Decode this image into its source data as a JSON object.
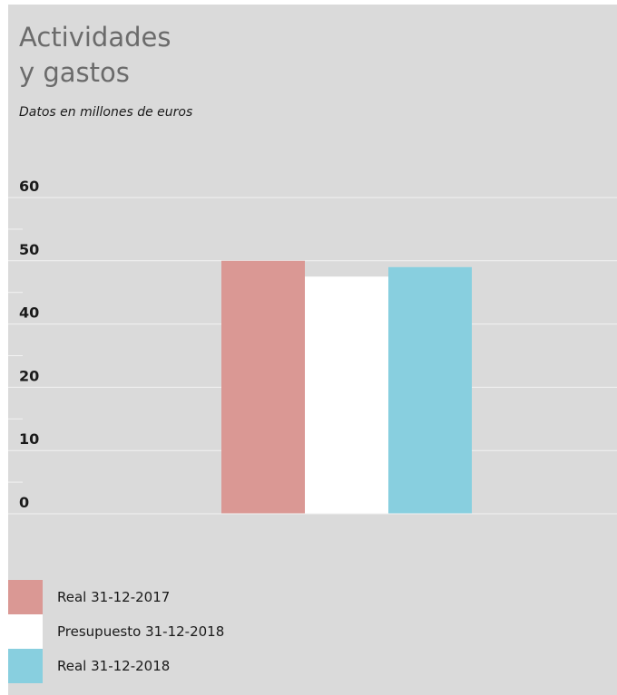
{
  "title_line1": "Actividades",
  "title_line2": "y gastos",
  "subtitle": "Datos en millones de euros",
  "chart_data": {
    "type": "bar",
    "categories": [
      ""
    ],
    "series": [
      {
        "name": "Real 31-12-2017",
        "values": [
          50
        ],
        "color": "#da9894"
      },
      {
        "name": "Presupuesto 31-12-2018",
        "values": [
          47.5
        ],
        "color": "#ffffff"
      },
      {
        "name": "Real 31-12-2018",
        "values": [
          49
        ],
        "color": "#88cfdf"
      }
    ],
    "ytick_labels": [
      "0",
      "10",
      "20",
      "40",
      "50",
      "60"
    ],
    "title": "Actividades y gastos",
    "subtitle": "Datos en millones de euros",
    "xlabel": "",
    "ylabel": "",
    "ylim": [
      0,
      60
    ],
    "grid": true,
    "legend": "bottom-left"
  },
  "colors": {
    "background": "#dadada",
    "gridline": "#f2f2f2",
    "title": "#6b6b6b",
    "text": "#1a1a1a"
  }
}
